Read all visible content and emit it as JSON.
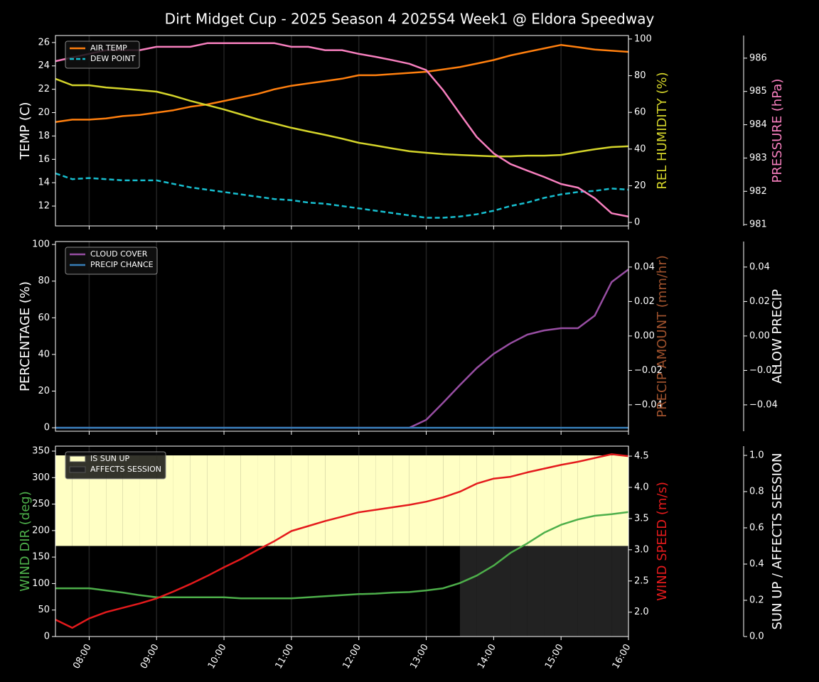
{
  "title": "Dirt Midget Cup - 2025 Season 4 2025S4 Week1 @ Eldora Speedway",
  "x": [
    "07:30",
    "07:45",
    "08:00",
    "08:15",
    "08:30",
    "08:45",
    "09:00",
    "09:15",
    "09:30",
    "09:45",
    "10:00",
    "10:15",
    "10:30",
    "10:45",
    "11:00",
    "11:15",
    "11:30",
    "11:45",
    "12:00",
    "12:15",
    "12:30",
    "12:45",
    "13:00",
    "13:15",
    "13:30",
    "13:45",
    "14:00",
    "14:15",
    "14:30",
    "14:45",
    "15:00",
    "15:15",
    "15:30",
    "15:45",
    "16:00"
  ],
  "xlim": [
    "07:30",
    "16:00"
  ],
  "xticks": [
    "08:00",
    "09:00",
    "10:00",
    "11:00",
    "12:00",
    "13:00",
    "14:00",
    "15:00",
    "16:00"
  ],
  "chart_data": [
    {
      "type": "line",
      "legend": "upper left",
      "grid": true,
      "ylabel": "TEMP (C)",
      "ylim": [
        10.3,
        26.6
      ],
      "yticks": [
        12,
        14,
        16,
        18,
        20,
        22,
        24,
        26
      ],
      "y2label": "REL HUMIDITY (%)",
      "y2color": "#d4d42a",
      "y2lim": [
        -1.9,
        101.9
      ],
      "y2ticks": [
        0,
        20,
        40,
        60,
        80,
        100
      ],
      "y3label": "PRESSURE (hPa)",
      "y3color": "#f77fbe",
      "y3lim": [
        980.96,
        986.68
      ],
      "y3ticks": [
        981,
        982,
        983,
        984,
        985,
        986
      ],
      "series": [
        {
          "name": "AIR TEMP",
          "color": "#ff7f0e",
          "axis": "y",
          "values": [
            19.2,
            19.4,
            19.4,
            19.5,
            19.7,
            19.8,
            20.0,
            20.2,
            20.5,
            20.7,
            21.0,
            21.3,
            21.6,
            22.0,
            22.3,
            22.5,
            22.7,
            22.9,
            23.2,
            23.2,
            23.3,
            23.4,
            23.5,
            23.7,
            23.9,
            24.2,
            24.5,
            24.9,
            25.2,
            25.5,
            25.8,
            25.6,
            25.4,
            25.3,
            25.2
          ]
        },
        {
          "name": "DEW POINT",
          "color": "#17becf",
          "axis": "y",
          "linestyle": "dashed",
          "values": [
            14.8,
            14.3,
            14.4,
            14.3,
            14.2,
            14.2,
            14.2,
            13.9,
            13.6,
            13.4,
            13.2,
            13.0,
            12.8,
            12.6,
            12.5,
            12.3,
            12.2,
            12.0,
            11.8,
            11.6,
            11.4,
            11.2,
            11.0,
            11.0,
            11.1,
            11.3,
            11.6,
            12.0,
            12.3,
            12.7,
            13.0,
            13.2,
            13.3,
            13.5,
            13.4
          ]
        },
        {
          "color": "#d4d42a",
          "axis": "y2",
          "values": [
            78.3,
            74.8,
            74.8,
            73.6,
            72.9,
            72.1,
            71.3,
            69.0,
            66.3,
            64.0,
            61.6,
            58.9,
            56.2,
            53.9,
            51.6,
            49.6,
            47.7,
            45.7,
            43.4,
            41.9,
            40.3,
            38.8,
            38.0,
            37.2,
            36.8,
            36.4,
            36.0,
            36.0,
            36.4,
            36.4,
            36.8,
            38.4,
            39.9,
            41.1,
            41.5
          ]
        },
        {
          "color": "#f77fbe",
          "axis": "y3",
          "values": [
            985.91,
            986.02,
            986.13,
            986.24,
            986.24,
            986.24,
            986.34,
            986.34,
            986.34,
            986.45,
            986.45,
            986.45,
            986.45,
            986.45,
            986.34,
            986.34,
            986.24,
            986.24,
            986.13,
            986.04,
            985.94,
            985.83,
            985.64,
            985.04,
            984.33,
            983.63,
            983.14,
            982.82,
            982.62,
            982.43,
            982.22,
            982.11,
            981.79,
            981.34,
            981.24
          ]
        }
      ]
    },
    {
      "type": "line",
      "legend": "upper left",
      "grid": true,
      "ylabel": "PERCENTAGE (%)",
      "ylim": [
        -1.9,
        101.6
      ],
      "yticks": [
        0,
        20,
        40,
        60,
        80,
        100
      ],
      "y2label": "PRECIP AMOUNT (mm/hr)",
      "y2color": "#a0522d",
      "y2lim": [
        -0.0553,
        0.0548
      ],
      "y2ticks": [
        {
          "value": -0.04,
          "label": "−0.04"
        },
        {
          "value": -0.02,
          "label": "−0.02"
        },
        {
          "value": 0,
          "label": "0.00"
        },
        0.02,
        0.04
      ],
      "y3label": "ALLOW PRECIP",
      "y3color": "#ffffff",
      "y3lim": [
        -0.0553,
        0.0548
      ],
      "y3ticks": [
        {
          "value": -0.04,
          "label": "−0.04"
        },
        {
          "value": -0.02,
          "label": "−0.02"
        },
        {
          "value": 0,
          "label": "0.00"
        },
        0.02,
        0.04
      ],
      "series": [
        {
          "name": "CLOUD COVER",
          "color": "#984ea3",
          "axis": "y",
          "values": [
            0,
            0,
            0,
            0,
            0,
            0,
            0,
            0,
            0,
            0,
            0,
            0,
            0,
            0,
            0,
            0,
            0,
            0,
            0,
            0,
            0,
            0,
            4.3,
            13.6,
            23.3,
            32.6,
            40.3,
            46.1,
            50.8,
            53.1,
            54.3,
            54.3,
            61.2,
            79.5,
            86.4
          ]
        },
        {
          "name": "PRECIP CHANCE",
          "color": "#377eb8",
          "axis": "y",
          "values": [
            0,
            0,
            0,
            0,
            0,
            0,
            0,
            0,
            0,
            0,
            0,
            0,
            0,
            0,
            0,
            0,
            0,
            0,
            0,
            0,
            0,
            0,
            0,
            0,
            0,
            0,
            0,
            0,
            0,
            0,
            0,
            0,
            0,
            0,
            0
          ]
        }
      ]
    },
    {
      "type": "line",
      "legend": "upper left",
      "grid": true,
      "ylabel": "WIND DIR (deg)",
      "ycolor": "#4daf4a",
      "ylim": [
        0,
        359.4
      ],
      "yticks": [
        0,
        50,
        100,
        150,
        200,
        250,
        300,
        350
      ],
      "y2label": "WIND SPEED (m/s)",
      "y2color": "#e41a1c",
      "y2lim": [
        1.61,
        4.66
      ],
      "y2ticks": [
        {
          "value": 2,
          "label": "2.0"
        },
        2.5,
        {
          "value": 3,
          "label": "3.0"
        },
        3.5,
        {
          "value": 4,
          "label": "4.0"
        },
        4.5
      ],
      "y3label": "SUN UP / AFFECTS SESSION",
      "y3color": "#ffffff",
      "y3lim": [
        0,
        1.051
      ],
      "y3ticks": [
        {
          "value": 0,
          "label": "0.0"
        },
        0.2,
        0.4,
        0.6,
        0.8,
        {
          "value": 1,
          "label": "1.0"
        }
      ],
      "series": [
        {
          "name": "IS SUN UP",
          "color": "#ffffc4",
          "axis": "y3",
          "style": "fill",
          "band": "upper",
          "values": [
            1,
            1,
            1,
            1,
            1,
            1,
            1,
            1,
            1,
            1,
            1,
            1,
            1,
            1,
            1,
            1,
            1,
            1,
            1,
            1,
            1,
            1,
            1,
            1,
            1,
            1,
            1,
            1,
            1,
            1,
            1,
            1,
            1,
            1,
            1
          ]
        },
        {
          "name": "AFFECTS SESSION",
          "color": "#222222",
          "axis": "y3",
          "style": "fill",
          "band": "lower",
          "values": [
            0,
            0,
            0,
            0,
            0,
            0,
            0,
            0,
            0,
            0,
            0,
            0,
            0,
            0,
            0,
            0,
            0,
            0,
            0,
            0,
            0,
            0,
            0,
            0,
            1,
            1,
            1,
            1,
            1,
            1,
            1,
            1,
            1,
            1,
            1
          ]
        },
        {
          "color": "#4daf4a",
          "axis": "y",
          "values": [
            91,
            91,
            91,
            87,
            83,
            78,
            74,
            74,
            74,
            74,
            74,
            72,
            72,
            72,
            72,
            74,
            76,
            78,
            80,
            81,
            83,
            84,
            87,
            91,
            101,
            115,
            134,
            158,
            176,
            196,
            211,
            221,
            228,
            231,
            235
          ]
        },
        {
          "color": "#e41a1c",
          "axis": "y2",
          "values": [
            1.88,
            1.75,
            1.9,
            2.0,
            2.07,
            2.14,
            2.22,
            2.33,
            2.45,
            2.58,
            2.72,
            2.85,
            3.0,
            3.14,
            3.3,
            3.38,
            3.46,
            3.53,
            3.6,
            3.64,
            3.68,
            3.72,
            3.77,
            3.84,
            3.93,
            4.06,
            4.14,
            4.17,
            4.24,
            4.3,
            4.36,
            4.41,
            4.47,
            4.53,
            4.5
          ]
        }
      ]
    }
  ]
}
